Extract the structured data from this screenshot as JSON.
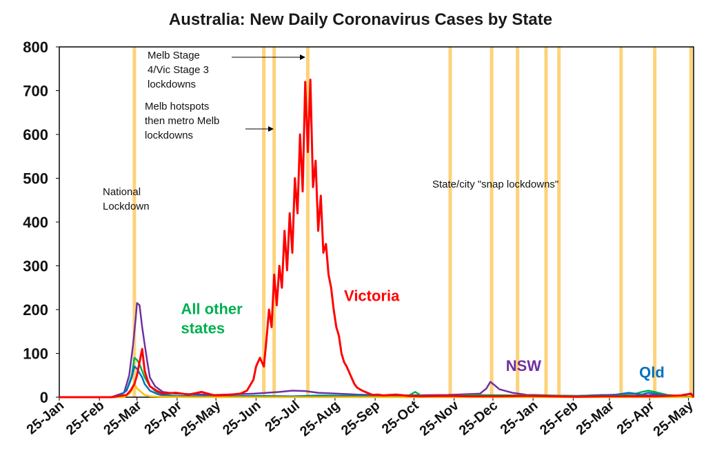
{
  "chart_data": {
    "type": "line",
    "title": "Australia: New Daily Coronavirus Cases by State",
    "ylim": [
      0,
      800
    ],
    "y_ticks": [
      0,
      100,
      200,
      300,
      400,
      500,
      600,
      700,
      800
    ],
    "x_range_days": [
      0,
      490
    ],
    "x_ticks": [
      {
        "label": "25-Jan",
        "day": 0
      },
      {
        "label": "25-Feb",
        "day": 31
      },
      {
        "label": "25-Mar",
        "day": 60
      },
      {
        "label": "25-Apr",
        "day": 91
      },
      {
        "label": "25-May",
        "day": 121
      },
      {
        "label": "25-Jun",
        "day": 152
      },
      {
        "label": "25-Jul",
        "day": 182
      },
      {
        "label": "25-Aug",
        "day": 213
      },
      {
        "label": "25-Sep",
        "day": 244
      },
      {
        "label": "25-Oct",
        "day": 274
      },
      {
        "label": "25-Nov",
        "day": 305
      },
      {
        "label": "25-Dec",
        "day": 335
      },
      {
        "label": "25-Jan",
        "day": 366
      },
      {
        "label": "25-Feb",
        "day": 397
      },
      {
        "label": "25-Mar",
        "day": 425
      },
      {
        "label": "25-Apr",
        "day": 456
      },
      {
        "label": "25-May",
        "day": 486
      }
    ],
    "lockdown_days": [
      58,
      158,
      166,
      192,
      302,
      334,
      354,
      376,
      386,
      434,
      460,
      488
    ],
    "series": [
      {
        "name": "Victoria",
        "color": "#ff0000",
        "label_pos": {
          "day": 220,
          "value": 220
        },
        "x": [
          0,
          40,
          52,
          55,
          58,
          60,
          62,
          64,
          66,
          68,
          70,
          75,
          80,
          90,
          100,
          110,
          120,
          130,
          140,
          145,
          150,
          152,
          155,
          158,
          160,
          162,
          164,
          166,
          168,
          170,
          172,
          174,
          176,
          178,
          180,
          182,
          184,
          186,
          188,
          190,
          192,
          194,
          196,
          198,
          200,
          202,
          204,
          206,
          208,
          210,
          212,
          214,
          216,
          218,
          220,
          222,
          225,
          228,
          230,
          234,
          238,
          242,
          246,
          250,
          260,
          270,
          280,
          300,
          320,
          340,
          360,
          380,
          400,
          420,
          440,
          460,
          480,
          488,
          490
        ],
        "y": [
          0,
          0,
          5,
          15,
          30,
          50,
          80,
          110,
          60,
          40,
          25,
          15,
          8,
          10,
          6,
          12,
          4,
          5,
          8,
          15,
          40,
          70,
          90,
          70,
          130,
          200,
          160,
          280,
          210,
          300,
          250,
          380,
          290,
          420,
          330,
          500,
          420,
          600,
          470,
          720,
          560,
          725,
          480,
          540,
          380,
          460,
          330,
          350,
          280,
          250,
          200,
          160,
          140,
          100,
          80,
          70,
          50,
          30,
          22,
          15,
          10,
          5,
          6,
          4,
          6,
          3,
          2,
          3,
          2,
          2,
          3,
          2,
          1,
          2,
          2,
          2,
          4,
          8,
          0
        ]
      },
      {
        "name": "NSW",
        "color": "#7030a0",
        "label_pos": {
          "day": 345,
          "value": 60
        },
        "x": [
          0,
          40,
          50,
          54,
          57,
          59,
          60,
          62,
          64,
          66,
          68,
          70,
          74,
          80,
          90,
          120,
          150,
          170,
          180,
          190,
          200,
          230,
          260,
          300,
          325,
          330,
          333,
          336,
          340,
          350,
          360,
          380,
          400,
          420,
          440,
          460,
          480,
          490
        ],
        "y": [
          0,
          0,
          10,
          50,
          120,
          180,
          215,
          210,
          160,
          120,
          80,
          45,
          25,
          12,
          8,
          5,
          8,
          12,
          15,
          14,
          10,
          6,
          4,
          5,
          8,
          20,
          35,
          28,
          18,
          10,
          6,
          4,
          3,
          5,
          3,
          5,
          3,
          0
        ]
      },
      {
        "name": "All other states",
        "color": "#00b050",
        "label_pos": {
          "day": 94,
          "value": 190
        },
        "x": [
          0,
          45,
          52,
          56,
          58,
          60,
          62,
          64,
          66,
          70,
          75,
          80,
          90,
          120,
          150,
          180,
          200,
          260,
          270,
          275,
          280,
          300,
          320,
          400,
          430,
          445,
          450,
          455,
          460,
          470,
          490
        ],
        "y": [
          0,
          0,
          15,
          50,
          90,
          85,
          75,
          60,
          45,
          25,
          12,
          6,
          3,
          2,
          3,
          2,
          4,
          2,
          4,
          12,
          3,
          2,
          5,
          3,
          5,
          8,
          12,
          15,
          12,
          5,
          0
        ]
      },
      {
        "name": "Qld",
        "color": "#0070c0",
        "label_pos": {
          "day": 448,
          "value": 45
        },
        "x": [
          0,
          45,
          52,
          56,
          58,
          60,
          62,
          64,
          66,
          70,
          75,
          80,
          90,
          150,
          200,
          260,
          300,
          350,
          400,
          430,
          440,
          445,
          450,
          455,
          460,
          470,
          490
        ],
        "y": [
          0,
          0,
          15,
          45,
          70,
          65,
          55,
          45,
          30,
          15,
          8,
          4,
          2,
          2,
          2,
          2,
          2,
          3,
          2,
          6,
          10,
          8,
          6,
          10,
          8,
          4,
          0
        ]
      },
      {
        "name": "",
        "color": "#ffc000",
        "x": [
          0,
          50,
          55,
          58,
          60,
          62,
          64,
          66,
          70,
          80,
          100,
          490
        ],
        "y": [
          0,
          0,
          10,
          30,
          20,
          15,
          10,
          5,
          2,
          1,
          0,
          0
        ]
      }
    ]
  },
  "annotations": {
    "national": [
      "National",
      "Lockdown"
    ],
    "melb_hotspots": [
      "Melb hotspots",
      "then metro Melb",
      "lockdowns"
    ],
    "melb_stage4": [
      "Melb Stage",
      "4/Vic Stage 3",
      "lockdowns"
    ],
    "snap": "State/city \"snap lockdowns\""
  }
}
